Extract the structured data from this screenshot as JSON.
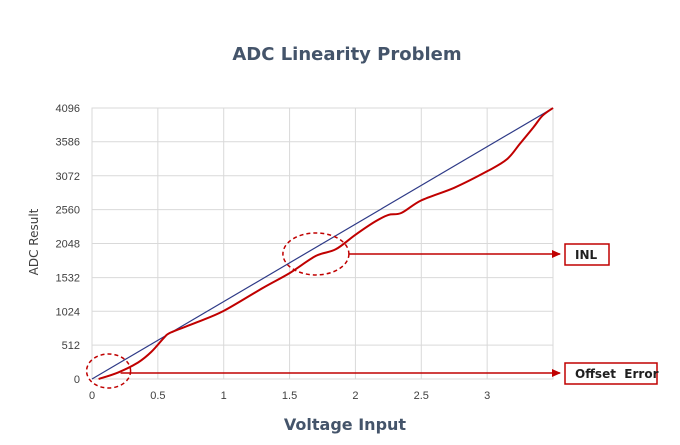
{
  "chart_data": {
    "type": "line",
    "title": "ADC Linearity Problem",
    "xlabel": "Voltage Input",
    "ylabel": "ADC Result",
    "xlim": [
      0,
      3.5
    ],
    "ylim": [
      0,
      4096
    ],
    "x_ticks": [
      0,
      0.5,
      1,
      1.5,
      2,
      2.5,
      3
    ],
    "x_tick_labels": [
      "0",
      "0.5",
      "1",
      "1.5",
      "2",
      "2.5",
      "3"
    ],
    "y_ticks": [
      0,
      512,
      1024,
      1532,
      2048,
      2560,
      3072,
      3586,
      4096
    ],
    "y_tick_labels": [
      "0",
      "512",
      "1024",
      "1532",
      "2048",
      "2560",
      "3072",
      "3586",
      "4096"
    ],
    "grid": true,
    "series": [
      {
        "values": [
          [
            0,
            0
          ],
          [
            3.5,
            4096
          ]
        ],
        "color": "#2e3a87"
      },
      {
        "values": [
          [
            0.05,
            0
          ],
          [
            0.2,
            100
          ],
          [
            0.35,
            250
          ],
          [
            0.45,
            410
          ],
          [
            0.55,
            630
          ],
          [
            0.6,
            705
          ],
          [
            0.8,
            860
          ],
          [
            1.0,
            1030
          ],
          [
            1.3,
            1380
          ],
          [
            1.5,
            1600
          ],
          [
            1.7,
            1860
          ],
          [
            1.85,
            1960
          ],
          [
            2.0,
            2180
          ],
          [
            2.15,
            2380
          ],
          [
            2.25,
            2480
          ],
          [
            2.35,
            2510
          ],
          [
            2.5,
            2700
          ],
          [
            2.75,
            2890
          ],
          [
            3.0,
            3140
          ],
          [
            3.15,
            3320
          ],
          [
            3.25,
            3560
          ],
          [
            3.35,
            3800
          ],
          [
            3.42,
            3980
          ],
          [
            3.5,
            4096
          ]
        ],
        "color": "#c00000"
      }
    ],
    "annotations": [
      {
        "label": "INL",
        "target": [
          1.7,
          1860
        ]
      },
      {
        "label": "Offset  Error",
        "target": [
          0.05,
          0
        ]
      }
    ]
  }
}
